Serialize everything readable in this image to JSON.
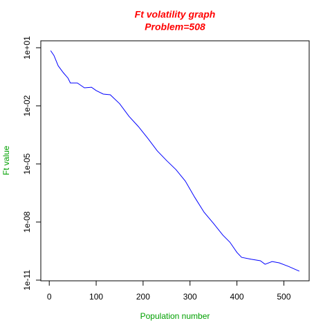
{
  "chart_data": {
    "type": "line",
    "title": "Ft volatility graph",
    "subtitle": "Problem=508",
    "x_label": "Population number",
    "y_label": "Ft value",
    "log_y": true,
    "xlim": [
      -18,
      554
    ],
    "ylim": [
      9.2e-12,
      22.8
    ],
    "xticks": [
      0,
      100,
      200,
      300,
      400,
      500
    ],
    "yticks": [
      {
        "value": 10,
        "label": "1e+01"
      },
      {
        "value": 0.01,
        "label": "1e-02"
      },
      {
        "value": 1e-05,
        "label": "1e-05"
      },
      {
        "value": 1e-08,
        "label": "1e-08"
      },
      {
        "value": 1e-11,
        "label": "1e-11"
      }
    ],
    "x": [
      3,
      10,
      19,
      30,
      40,
      45,
      60,
      75,
      90,
      100,
      115,
      130,
      150,
      170,
      190,
      210,
      230,
      250,
      270,
      290,
      310,
      330,
      350,
      370,
      385,
      400,
      410,
      430,
      450,
      460,
      475,
      490,
      510,
      533
    ],
    "series": [
      {
        "name": "Ft value",
        "color": "#0000ff",
        "values": [
          7.08,
          3.98,
          1.17,
          0.513,
          0.269,
          0.151,
          0.151,
          0.0851,
          0.0912,
          0.0617,
          0.0407,
          0.0372,
          0.0129,
          0.00288,
          0.00085,
          0.00021,
          4.8e-05,
          1.5e-05,
          5.1e-06,
          1.3e-06,
          1.9e-07,
          3.2e-08,
          8.5e-09,
          2.1e-09,
          9.1e-10,
          2.7e-10,
          1.5e-10,
          1.2e-10,
          1e-10,
          6.6e-11,
          9.1e-11,
          7.8e-11,
          5.1e-11,
          2.9e-11
        ]
      }
    ]
  }
}
